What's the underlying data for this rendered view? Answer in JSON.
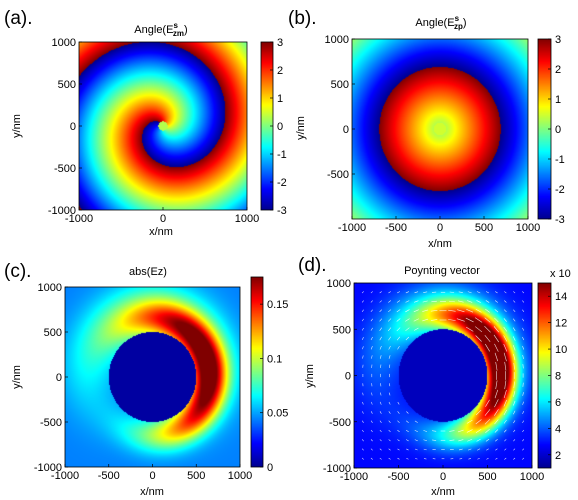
{
  "figure": {
    "colormap": "jet",
    "colormap_stops": [
      "#00008f",
      "#0000ff",
      "#0080ff",
      "#00ffff",
      "#80ff80",
      "#ffff00",
      "#ff8000",
      "#ff0000",
      "#800000"
    ]
  },
  "chart_data": [
    {
      "panel": "(a).",
      "type": "heatmap",
      "title": "Angle(E",
      "title_sub": "zm",
      "title_sup": "s",
      "title_close": ")",
      "xlabel": "x/nm",
      "ylabel": "y/nm",
      "xlim": [
        -1000,
        1000
      ],
      "ylim": [
        -1000,
        1000
      ],
      "x_ticks": [
        -1000,
        0,
        1000
      ],
      "y_ticks": [
        1000,
        500,
        0,
        -500,
        -1000
      ],
      "field": "spiral phase, one turn (topological charge 1)",
      "colorbar": {
        "min": -3,
        "max": 3,
        "ticks": [
          3,
          2,
          1,
          0,
          -1,
          -2,
          -3
        ]
      }
    },
    {
      "panel": "(b).",
      "type": "heatmap",
      "title": "Angle(E",
      "title_sub": "zp",
      "title_sup": "s",
      "title_close": ")",
      "xlabel": "x/nm",
      "ylabel": "y/nm",
      "xlim": [
        -1000,
        1000
      ],
      "ylim": [
        -1000,
        1000
      ],
      "x_ticks": [
        -1000,
        -500,
        0,
        500,
        1000
      ],
      "y_ticks": [
        1000,
        500,
        0,
        -500
      ],
      "field": "concentric phase rings",
      "colorbar": {
        "min": -3,
        "max": 3,
        "ticks": [
          3,
          2,
          1,
          0,
          -1,
          -2,
          -3
        ]
      }
    },
    {
      "panel": "(c).",
      "type": "heatmap",
      "title": "abs(Ez)",
      "xlabel": "x/nm",
      "ylabel": "y/nm",
      "xlim": [
        -1000,
        1000
      ],
      "ylim": [
        -1000,
        1000
      ],
      "x_ticks": [
        -1000,
        -500,
        0,
        500,
        1000
      ],
      "y_ticks": [
        1000,
        500,
        0,
        -500,
        -1000
      ],
      "particle_radius_nm": 500,
      "field": "crescent of high |Ez| on the right side of the particle",
      "colorbar": {
        "min": 0,
        "max": 0.175,
        "ticks": [
          0.15,
          0.1,
          0.05,
          0
        ],
        "tick_labels": [
          "0.15",
          "0.1",
          "0.05",
          "0"
        ]
      }
    },
    {
      "panel": "(d).",
      "type": "heatmap",
      "title": "Poynting vector",
      "xlabel": "x/nm",
      "ylabel": "y/nm",
      "xlim": [
        -1000,
        1000
      ],
      "ylim": [
        -1000,
        1000
      ],
      "x_ticks": [
        -1000,
        -500,
        0,
        500,
        1000
      ],
      "y_ticks": [
        1000,
        500,
        0,
        -500,
        -1000
      ],
      "particle_radius_nm": 500,
      "field": "Poynting vector magnitude with white arrow overlay",
      "colorbar": {
        "min": 1,
        "max": 15,
        "ticks": [
          14,
          12,
          10,
          8,
          6,
          4,
          2
        ],
        "exponent_label": "x 10"
      }
    }
  ]
}
